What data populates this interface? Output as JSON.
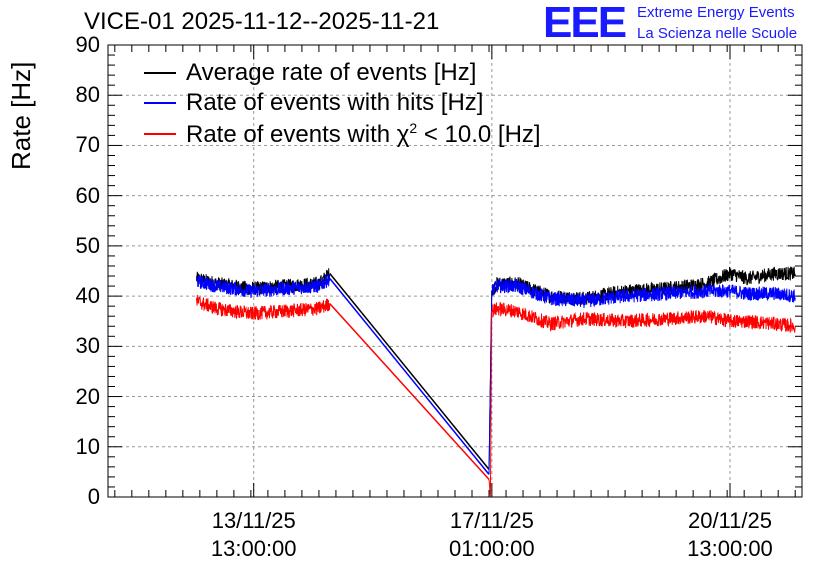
{
  "title": "VICE-01 2025-11-12--2025-11-21",
  "logo": {
    "letters": "EEE",
    "line1": "Extreme Energy Events",
    "line2": "La Scienza nelle Scuole"
  },
  "chart_data": {
    "type": "line",
    "ylabel": "Rate [Hz]",
    "xlabel": "",
    "ylim": [
      0,
      90
    ],
    "yticks": [
      0,
      10,
      20,
      30,
      40,
      50,
      60,
      70,
      80,
      90
    ],
    "xlim_days_since_2025_11_12": [
      -0.6,
      9.6
    ],
    "xticks": [
      {
        "x": 1.5417,
        "line1": "13/11/25",
        "line2": "13:00:00"
      },
      {
        "x": 5.0417,
        "line1": "17/11/25",
        "line2": "01:00:00"
      },
      {
        "x": 8.5417,
        "line1": "20/11/25",
        "line2": "13:00:00"
      }
    ],
    "grid": true,
    "legend_position": "top-left",
    "series": [
      {
        "name": "Average rate of events [Hz]",
        "color": "#000000",
        "segments": [
          {
            "x": [
              0.7,
              1.0,
              1.5,
              2.0,
              2.5,
              2.66
            ],
            "y": [
              43.5,
              42.5,
              41.5,
              42.0,
              42.5,
              44.5
            ]
          },
          {
            "x": [
              2.66,
              5.0
            ],
            "y": [
              44.5,
              5.5
            ]
          },
          {
            "x": [
              5.0,
              5.04,
              5.12,
              5.4,
              5.9,
              6.4,
              7.0,
              7.6,
              8.2,
              8.55,
              8.8,
              9.2,
              9.5
            ],
            "y": [
              5.5,
              41.0,
              42.5,
              42.5,
              40.0,
              39.5,
              41.0,
              41.5,
              42.5,
              44.5,
              43.5,
              44.5,
              44.5
            ]
          }
        ]
      },
      {
        "name": "Rate of events with hits [Hz]",
        "color": "#0000ff",
        "segments": [
          {
            "x": [
              0.7,
              1.0,
              1.5,
              2.0,
              2.5,
              2.66
            ],
            "y": [
              43.0,
              42.0,
              41.0,
              41.5,
              42.0,
              43.5
            ]
          },
          {
            "x": [
              2.66,
              5.0
            ],
            "y": [
              43.5,
              4.5
            ]
          },
          {
            "x": [
              5.0,
              5.04,
              5.12,
              5.4,
              5.9,
              6.4,
              7.0,
              7.6,
              8.2,
              8.55,
              8.8,
              9.2,
              9.5
            ],
            "y": [
              4.5,
              41.0,
              42.0,
              42.0,
              39.5,
              39.0,
              40.0,
              40.5,
              41.0,
              41.0,
              40.5,
              40.5,
              40.0
            ]
          }
        ]
      },
      {
        "name": "Rate of events with χ² < 10.0 [Hz]",
        "color": "#ff0000",
        "segments": [
          {
            "x": [
              0.7,
              1.0,
              1.5,
              2.0,
              2.5,
              2.66
            ],
            "y": [
              39.0,
              37.5,
              36.5,
              37.0,
              37.5,
              38.5
            ]
          },
          {
            "x": [
              2.66,
              5.0
            ],
            "y": [
              38.5,
              3.5
            ]
          },
          {
            "x": [
              5.0,
              5.02,
              5.04,
              5.12,
              5.4,
              5.9,
              6.4,
              7.0,
              7.6,
              8.2,
              8.55,
              8.8,
              9.2,
              9.5
            ],
            "y": [
              3.5,
              0.0,
              37.0,
              37.5,
              37.0,
              34.5,
              35.5,
              35.0,
              35.5,
              36.0,
              35.0,
              35.0,
              34.5,
              34.0
            ]
          }
        ]
      }
    ],
    "noise_amplitude_hz": 1.4
  },
  "legend": [
    {
      "label": "Average rate of events [Hz]",
      "color": "#000000"
    },
    {
      "label": "Rate of events with hits [Hz]",
      "color": "#0000ff"
    },
    {
      "label_prefix": "Rate of events with χ",
      "label_sup": "2",
      "label_suffix": " < 10.0 [Hz]",
      "color": "#ff0000"
    }
  ]
}
